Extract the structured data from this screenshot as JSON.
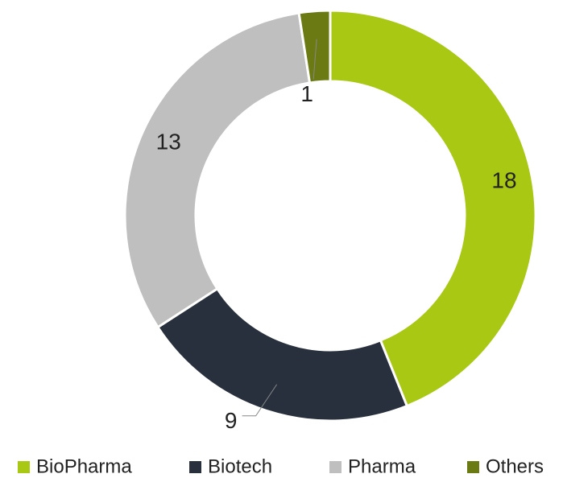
{
  "chart_data": {
    "type": "donut",
    "categories": [
      "BioPharma",
      "Biotech",
      "Pharma",
      "Others"
    ],
    "values": [
      18,
      9,
      13,
      1
    ],
    "colors": [
      "#a8c813",
      "#28303d",
      "#bfbfbf",
      "#6b7a12"
    ],
    "legend": "bottom"
  }
}
